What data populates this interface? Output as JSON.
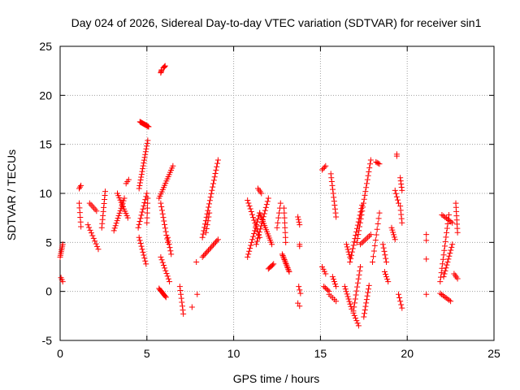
{
  "chart_data": {
    "type": "scatter",
    "title": "Day 024 of 2026, Sidereal Day-to-day VTEC variation (SDTVAR) for receiver sin1",
    "xlabel": "GPS time / hours",
    "ylabel": "SDTVAR / TECUs",
    "xlim": [
      0,
      25
    ],
    "ylim": [
      -5,
      25
    ],
    "xticks": [
      0,
      5,
      10,
      15,
      20,
      25
    ],
    "yticks": [
      -5,
      0,
      5,
      10,
      15,
      20,
      25
    ],
    "grid": true,
    "marker": "+",
    "color": "#ff0000",
    "segments": [
      {
        "x0": 0.0,
        "x1": 0.15,
        "y0": 3.5,
        "y1": 4.8,
        "n": 8
      },
      {
        "x0": 0.05,
        "x1": 0.15,
        "y0": 1.4,
        "y1": 1.0,
        "n": 3
      },
      {
        "x0": 1.1,
        "x1": 1.2,
        "y0": 10.5,
        "y1": 10.8,
        "n": 3
      },
      {
        "x0": 1.1,
        "x1": 1.2,
        "y0": 9.0,
        "y1": 6.6,
        "n": 6
      },
      {
        "x0": 1.6,
        "x1": 2.2,
        "y0": 6.8,
        "y1": 4.3,
        "n": 10
      },
      {
        "x0": 1.7,
        "x1": 2.1,
        "y0": 9.0,
        "y1": 8.2,
        "n": 6
      },
      {
        "x0": 2.4,
        "x1": 2.6,
        "y0": 6.5,
        "y1": 10.2,
        "n": 10
      },
      {
        "x0": 3.1,
        "x1": 3.7,
        "y0": 6.2,
        "y1": 9.5,
        "n": 14
      },
      {
        "x0": 3.3,
        "x1": 3.9,
        "y0": 10.0,
        "y1": 7.5,
        "n": 12
      },
      {
        "x0": 3.8,
        "x1": 3.95,
        "y0": 11.0,
        "y1": 11.4,
        "n": 3
      },
      {
        "x0": 4.6,
        "x1": 5.1,
        "y0": 17.3,
        "y1": 16.8,
        "n": 14
      },
      {
        "x0": 4.55,
        "x1": 5.05,
        "y0": 10.5,
        "y1": 15.4,
        "n": 18
      },
      {
        "x0": 4.5,
        "x1": 5.0,
        "y0": 6.5,
        "y1": 10.0,
        "n": 12
      },
      {
        "x0": 4.55,
        "x1": 4.95,
        "y0": 5.5,
        "y1": 2.8,
        "n": 10
      },
      {
        "x0": 5.05,
        "x1": 5.0,
        "y0": 9.5,
        "y1": 7.0,
        "n": 6
      },
      {
        "x0": 5.8,
        "x1": 5.85,
        "y0": 22.3,
        "y1": 22.6,
        "n": 4
      },
      {
        "x0": 5.95,
        "x1": 6.05,
        "y0": 22.8,
        "y1": 23.0,
        "n": 4
      },
      {
        "x0": 5.7,
        "x1": 6.5,
        "y0": 9.5,
        "y1": 12.8,
        "n": 16
      },
      {
        "x0": 5.8,
        "x1": 6.2,
        "y0": 9.0,
        "y1": 5.0,
        "n": 12
      },
      {
        "x0": 6.2,
        "x1": 6.4,
        "y0": 5.5,
        "y1": 3.8,
        "n": 6
      },
      {
        "x0": 5.8,
        "x1": 6.3,
        "y0": 3.5,
        "y1": 1.0,
        "n": 10
      },
      {
        "x0": 5.7,
        "x1": 6.1,
        "y0": 0.3,
        "y1": -0.6,
        "n": 10
      },
      {
        "x0": 6.9,
        "x1": 7.1,
        "y0": 0.5,
        "y1": -2.3,
        "n": 8
      },
      {
        "x0": 7.9,
        "x1": 7.9,
        "y0": -0.3,
        "y1": -0.3,
        "n": 1
      },
      {
        "x0": 7.85,
        "x1": 7.85,
        "y0": 3.0,
        "y1": 3.0,
        "n": 1
      },
      {
        "x0": 7.6,
        "x1": 7.6,
        "y0": -1.6,
        "y1": -1.6,
        "n": 1
      },
      {
        "x0": 8.2,
        "x1": 9.1,
        "y0": 5.5,
        "y1": 13.4,
        "n": 24
      },
      {
        "x0": 8.2,
        "x1": 9.1,
        "y0": 3.5,
        "y1": 5.3,
        "n": 14
      },
      {
        "x0": 8.4,
        "x1": 8.6,
        "y0": 6.0,
        "y1": 8.0,
        "n": 6
      },
      {
        "x0": 10.8,
        "x1": 11.5,
        "y0": 3.5,
        "y1": 8.0,
        "n": 16
      },
      {
        "x0": 10.8,
        "x1": 11.5,
        "y0": 9.3,
        "y1": 5.5,
        "n": 14
      },
      {
        "x0": 11.5,
        "x1": 12.2,
        "y0": 8.0,
        "y1": 4.8,
        "n": 16
      },
      {
        "x0": 11.3,
        "x1": 12.0,
        "y0": 4.8,
        "y1": 9.5,
        "n": 16
      },
      {
        "x0": 11.4,
        "x1": 11.6,
        "y0": 10.5,
        "y1": 10.0,
        "n": 4
      },
      {
        "x0": 12.0,
        "x1": 12.3,
        "y0": 2.3,
        "y1": 2.8,
        "n": 6
      },
      {
        "x0": 12.5,
        "x1": 12.7,
        "y0": 6.5,
        "y1": 9.0,
        "n": 6
      },
      {
        "x0": 12.8,
        "x1": 13.2,
        "y0": 3.8,
        "y1": 2.0,
        "n": 14
      },
      {
        "x0": 12.9,
        "x1": 13.0,
        "y0": 8.5,
        "y1": 5.0,
        "n": 8
      },
      {
        "x0": 13.7,
        "x1": 13.8,
        "y0": 7.6,
        "y1": 6.8,
        "n": 4
      },
      {
        "x0": 13.8,
        "x1": 13.8,
        "y0": 4.8,
        "y1": 4.6,
        "n": 2
      },
      {
        "x0": 13.75,
        "x1": 13.85,
        "y0": 0.5,
        "y1": -0.2,
        "n": 3
      },
      {
        "x0": 13.7,
        "x1": 13.8,
        "y0": -1.2,
        "y1": -1.5,
        "n": 2
      },
      {
        "x0": 15.1,
        "x1": 15.3,
        "y0": 12.4,
        "y1": 12.8,
        "n": 4
      },
      {
        "x0": 15.1,
        "x1": 15.3,
        "y0": 2.5,
        "y1": 1.8,
        "n": 4
      },
      {
        "x0": 15.2,
        "x1": 15.5,
        "y0": 0.5,
        "y1": 0.0,
        "n": 5
      },
      {
        "x0": 15.6,
        "x1": 15.9,
        "y0": 12.0,
        "y1": 7.6,
        "n": 12
      },
      {
        "x0": 15.7,
        "x1": 15.9,
        "y0": 1.5,
        "y1": 0.5,
        "n": 5
      },
      {
        "x0": 15.5,
        "x1": 15.9,
        "y0": -0.3,
        "y1": -1.0,
        "n": 5
      },
      {
        "x0": 16.5,
        "x1": 16.7,
        "y0": 4.8,
        "y1": 3.5,
        "n": 6
      },
      {
        "x0": 16.4,
        "x1": 16.8,
        "y0": 0.5,
        "y1": -1.8,
        "n": 10
      },
      {
        "x0": 16.7,
        "x1": 17.4,
        "y0": 3.0,
        "y1": 8.8,
        "n": 18
      },
      {
        "x0": 16.9,
        "x1": 17.3,
        "y0": -2.0,
        "y1": 2.5,
        "n": 12
      },
      {
        "x0": 16.9,
        "x1": 17.2,
        "y0": -2.2,
        "y1": -3.5,
        "n": 6
      },
      {
        "x0": 17.1,
        "x1": 17.9,
        "y0": 5.0,
        "y1": 13.4,
        "n": 22
      },
      {
        "x0": 17.3,
        "x1": 17.9,
        "y0": 4.8,
        "y1": 5.8,
        "n": 8
      },
      {
        "x0": 17.5,
        "x1": 17.8,
        "y0": -2.6,
        "y1": 0.6,
        "n": 10
      },
      {
        "x0": 18.2,
        "x1": 18.4,
        "y0": 13.2,
        "y1": 13.0,
        "n": 4
      },
      {
        "x0": 18.0,
        "x1": 18.4,
        "y0": 3.0,
        "y1": 8.0,
        "n": 10
      },
      {
        "x0": 18.6,
        "x1": 18.8,
        "y0": 4.8,
        "y1": 3.0,
        "n": 6
      },
      {
        "x0": 18.7,
        "x1": 18.9,
        "y0": 2.0,
        "y1": 1.0,
        "n": 5
      },
      {
        "x0": 19.1,
        "x1": 19.3,
        "y0": 6.5,
        "y1": 5.3,
        "n": 6
      },
      {
        "x0": 19.4,
        "x1": 19.4,
        "y0": 14.0,
        "y1": 13.8,
        "n": 2
      },
      {
        "x0": 19.3,
        "x1": 19.5,
        "y0": 10.3,
        "y1": 9.0,
        "n": 5
      },
      {
        "x0": 19.6,
        "x1": 19.7,
        "y0": 11.6,
        "y1": 10.3,
        "n": 5
      },
      {
        "x0": 19.6,
        "x1": 19.7,
        "y0": 8.7,
        "y1": 7.0,
        "n": 5
      },
      {
        "x0": 19.5,
        "x1": 19.7,
        "y0": -0.3,
        "y1": -1.7,
        "n": 5
      },
      {
        "x0": 21.1,
        "x1": 21.1,
        "y0": 5.8,
        "y1": 5.2,
        "n": 2
      },
      {
        "x0": 21.1,
        "x1": 21.1,
        "y0": 3.3,
        "y1": 3.3,
        "n": 1
      },
      {
        "x0": 21.1,
        "x1": 21.1,
        "y0": -0.3,
        "y1": -0.3,
        "n": 1
      },
      {
        "x0": 21.9,
        "x1": 22.4,
        "y0": 1.0,
        "y1": 7.8,
        "n": 16
      },
      {
        "x0": 22.1,
        "x1": 22.6,
        "y0": 1.5,
        "y1": 4.8,
        "n": 12
      },
      {
        "x0": 21.9,
        "x1": 22.5,
        "y0": -0.2,
        "y1": -1.0,
        "n": 8
      },
      {
        "x0": 22.0,
        "x1": 22.6,
        "y0": 7.8,
        "y1": 7.0,
        "n": 8
      },
      {
        "x0": 22.8,
        "x1": 22.9,
        "y0": 9.0,
        "y1": 6.0,
        "n": 8
      },
      {
        "x0": 22.7,
        "x1": 22.9,
        "y0": 1.8,
        "y1": 1.3,
        "n": 4
      }
    ]
  }
}
